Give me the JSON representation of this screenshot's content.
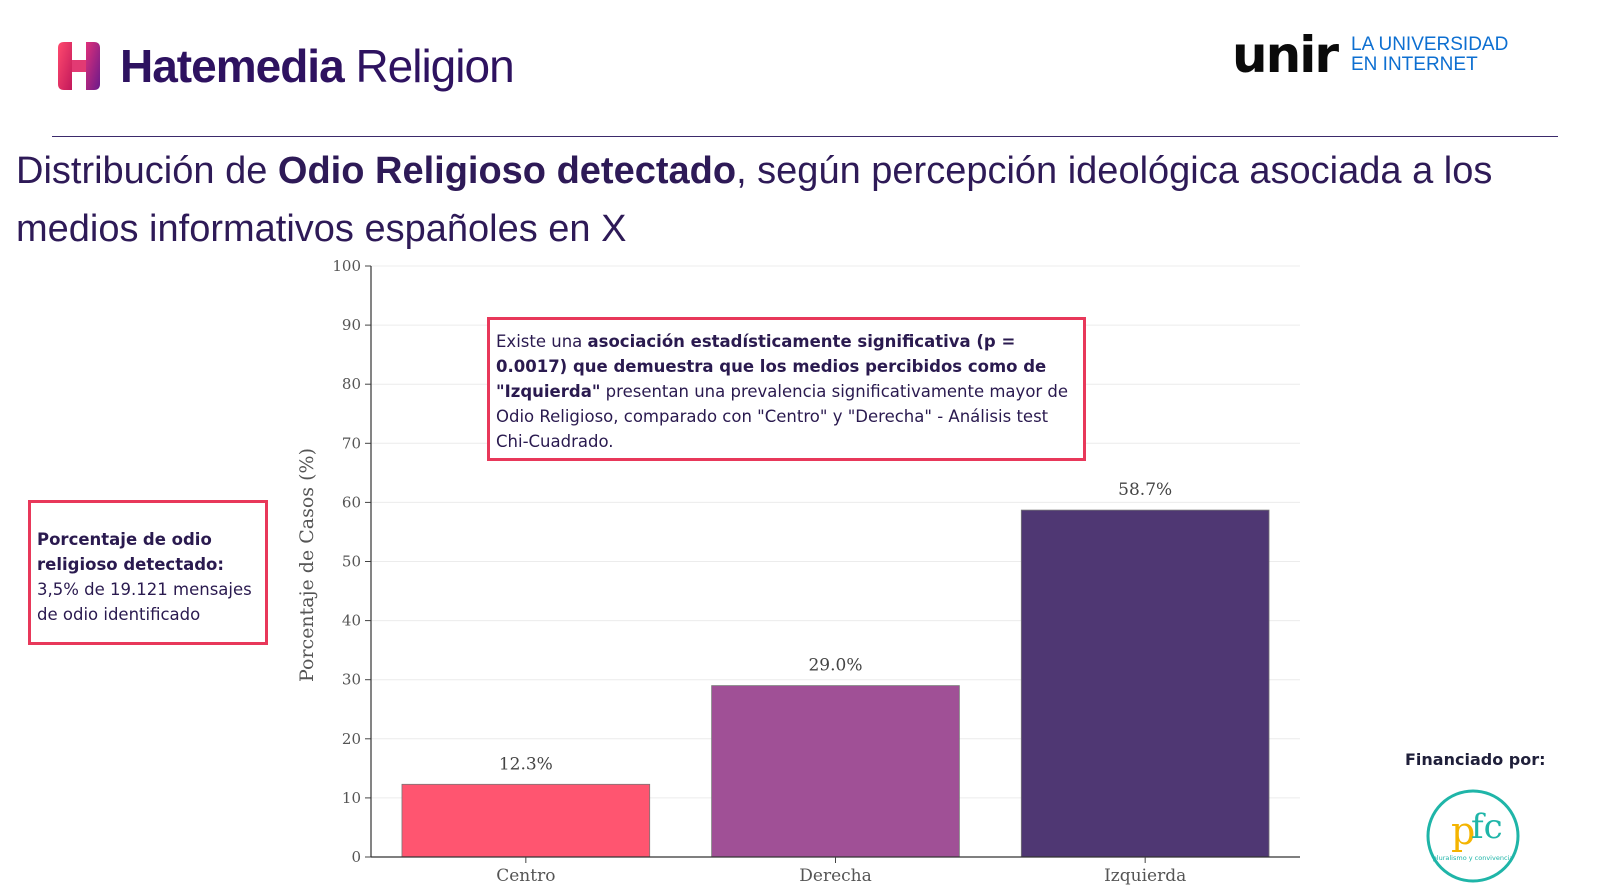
{
  "header": {
    "brand_bold": "Hatemedia",
    "brand_light": "Religion",
    "partner_logo_text": "unir",
    "partner_tagline_line1": "LA UNIVERSIDAD",
    "partner_tagline_line2": "EN INTERNET"
  },
  "title": {
    "prefix": "Distribución de ",
    "bold": "Odio Religioso detectado",
    "suffix": ", según percepción ideológica asociada a los medios informativos españoles en X"
  },
  "left_note": {
    "bold": "Porcentaje de odio religioso detectado:",
    "text": " 3,5% de 19.121 mensajes de odio identificado"
  },
  "top_note": {
    "prefix": "Existe una ",
    "bold": "asociación estadísticamente significativa (p = 0.0017) que demuestra que los medios percibidos como de \"Izquierda\"",
    "suffix": " presentan una prevalencia significativamente mayor de Odio Religioso, comparado con \"Centro\" y \"Derecha\" - Análisis test Chi-Cuadrado."
  },
  "footer": {
    "funded_label": "Financiado por:",
    "funder_logo_text": "pluralismo y convivencia"
  },
  "colors": {
    "centro": "#ff5570",
    "derecha": "#a05096",
    "izquierda": "#4f3773",
    "note_border": "#e8385a"
  },
  "chart_data": {
    "type": "bar",
    "categories": [
      "Centro",
      "Derecha",
      "Izquierda"
    ],
    "values": [
      12.3,
      29.0,
      58.7
    ],
    "value_labels": [
      "12.3%",
      "29.0%",
      "58.7%"
    ],
    "title": "",
    "xlabel": "",
    "ylabel": "Porcentaje de Casos (%)",
    "ylim": [
      0,
      100
    ],
    "yticks": [
      0,
      10,
      20,
      30,
      40,
      50,
      60,
      70,
      80,
      90,
      100
    ],
    "grid": true
  }
}
